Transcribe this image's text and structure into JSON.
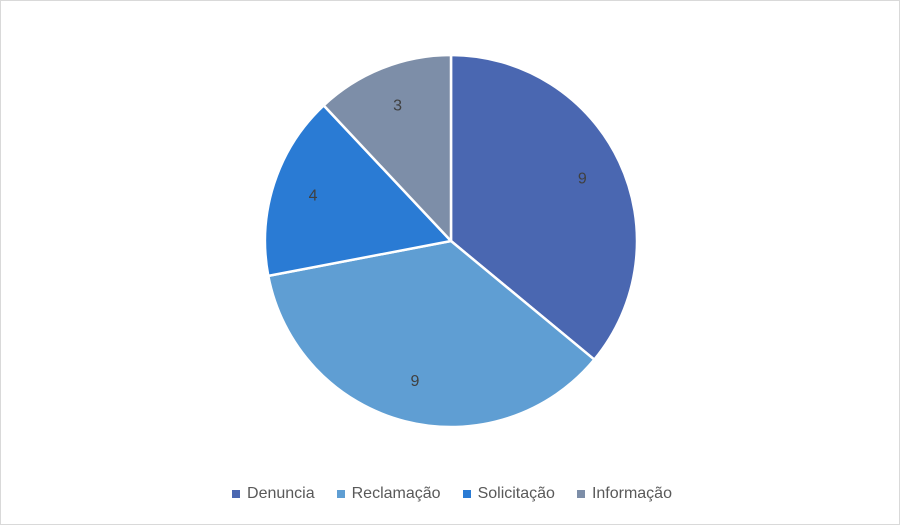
{
  "chart_data": {
    "type": "pie",
    "title": "",
    "categories": [
      "Denuncia",
      "Reclamação",
      "Solicitação",
      "Informação"
    ],
    "values": [
      9,
      9,
      4,
      3
    ],
    "colors": [
      "#4a67b1",
      "#5f9ed3",
      "#2a7bd4",
      "#7d8ea8"
    ],
    "data_labels": [
      "9",
      "9",
      "4",
      "3"
    ],
    "legend_position": "bottom",
    "start_angle": "top, clockwise"
  }
}
